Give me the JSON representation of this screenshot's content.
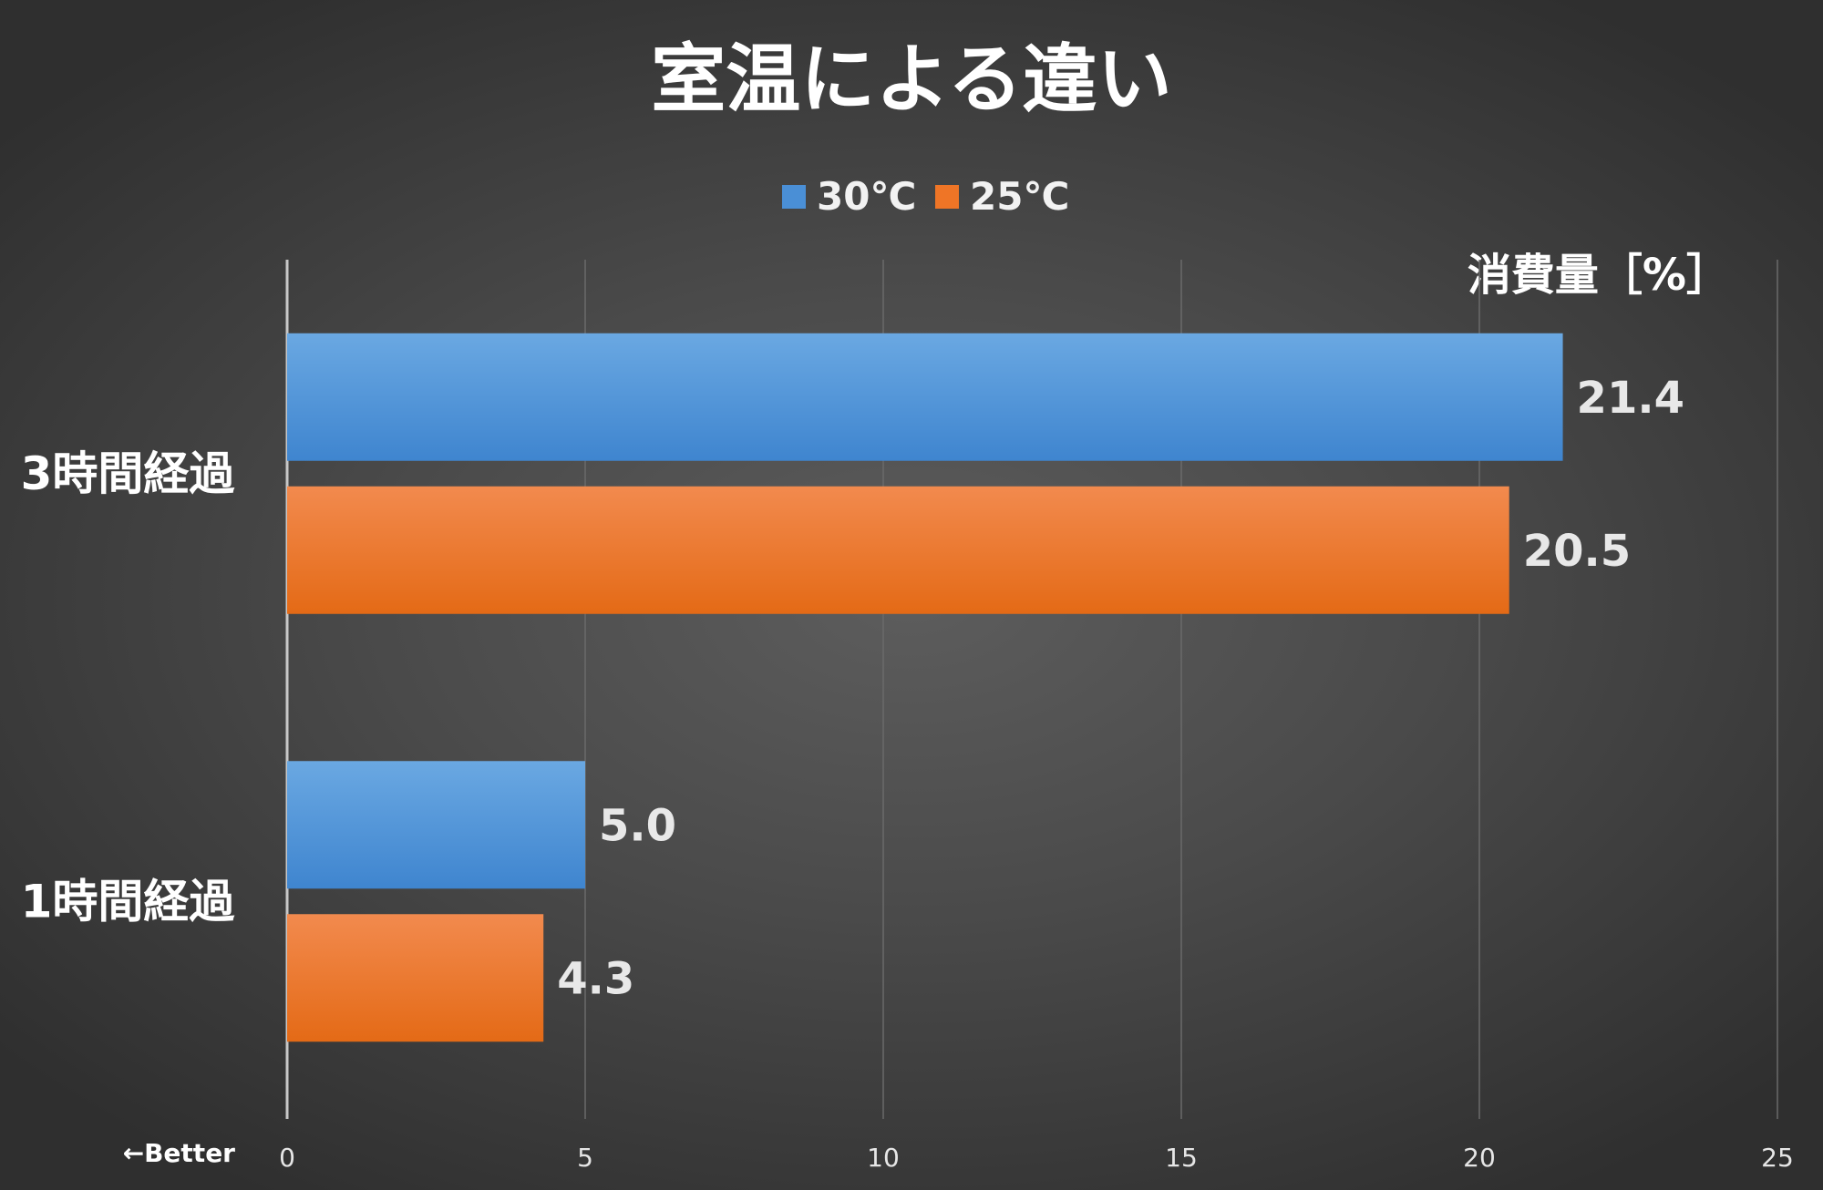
{
  "chart_data": {
    "type": "bar",
    "orientation": "horizontal",
    "title": "室温による違い",
    "categories": [
      "3時間経過",
      "1時間経過"
    ],
    "series": [
      {
        "name": "30℃",
        "color": "#4a8fd6",
        "values": [
          21.4,
          5.0
        ],
        "labels": [
          "21.4",
          "5.0"
        ]
      },
      {
        "name": "25℃",
        "color": "#ef7526",
        "values": [
          20.5,
          4.3
        ],
        "labels": [
          "20.5",
          "4.3"
        ]
      }
    ],
    "xlim": [
      0,
      25
    ],
    "x_ticks": [
      "0",
      "5",
      "10",
      "15",
      "20",
      "25"
    ],
    "x_unit_label": "消費量［%］",
    "better_note": "←Better",
    "grid": true,
    "legend_position": "top-center"
  }
}
